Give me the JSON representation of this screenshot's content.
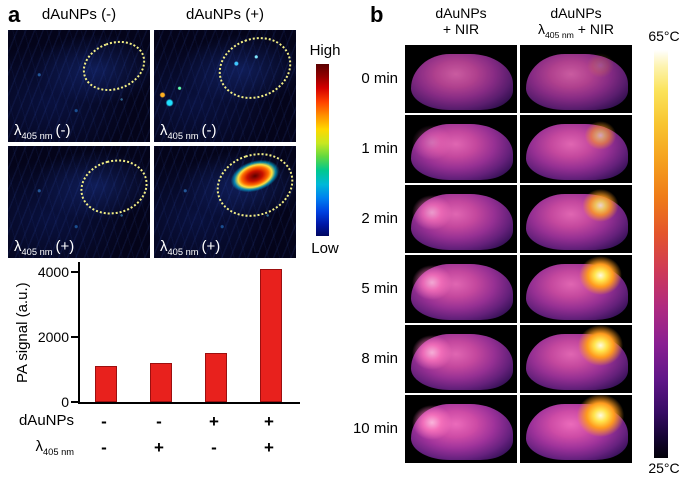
{
  "figure": {
    "panel_a_label": "a",
    "panel_b_label": "b"
  },
  "panel_a": {
    "col_headers": [
      "dAuNPs (-)",
      "dAuNPs (+)"
    ],
    "image_labels": [
      {
        "lambda": "λ",
        "sub": "405 nm",
        "state": "(-)"
      },
      {
        "lambda": "λ",
        "sub": "405 nm",
        "state": "(-)"
      },
      {
        "lambda": "λ",
        "sub": "405 nm",
        "state": "(+)"
      },
      {
        "lambda": "λ",
        "sub": "405 nm",
        "state": "(+)"
      }
    ],
    "colorbar": {
      "high": "High",
      "low": "Low"
    }
  },
  "chart_data": {
    "type": "bar",
    "title": "",
    "ylabel": "PA signal (a.u.)",
    "xlabel": "",
    "yticks": [
      "0",
      "2000",
      "4000"
    ],
    "ytick_values": [
      0,
      2000,
      4000
    ],
    "ylim": [
      0,
      4300
    ],
    "categories": [
      "dAuNPs(-)/λ405(-)",
      "dAuNPs(-)/λ405(+)",
      "dAuNPs(+)/λ405(-)",
      "dAuNPs(+)/λ405(+)"
    ],
    "values": [
      1100,
      1200,
      1500,
      4100
    ],
    "bar_color": "#e8211d",
    "grid": false,
    "legend": "none",
    "x_rows": [
      {
        "label": "dAuNPs",
        "signs": [
          "-",
          "-",
          "+",
          "+"
        ]
      },
      {
        "label_lambda": "λ",
        "label_sub": "405 nm",
        "signs": [
          "-",
          "+",
          "-",
          "+"
        ]
      }
    ]
  },
  "panel_b": {
    "col_headers": [
      {
        "line1": "dAuNPs",
        "line2": "+ NIR"
      },
      {
        "line1": "dAuNPs",
        "line2_lambda": "λ",
        "line2_sub": "405 nm",
        "line2_rest": " + NIR"
      }
    ],
    "time_labels": [
      "0 min",
      "1 min",
      "2 min",
      "5 min",
      "8 min",
      "10 min"
    ],
    "colorbar": {
      "top": "65°C",
      "bottom": "25°C"
    }
  }
}
